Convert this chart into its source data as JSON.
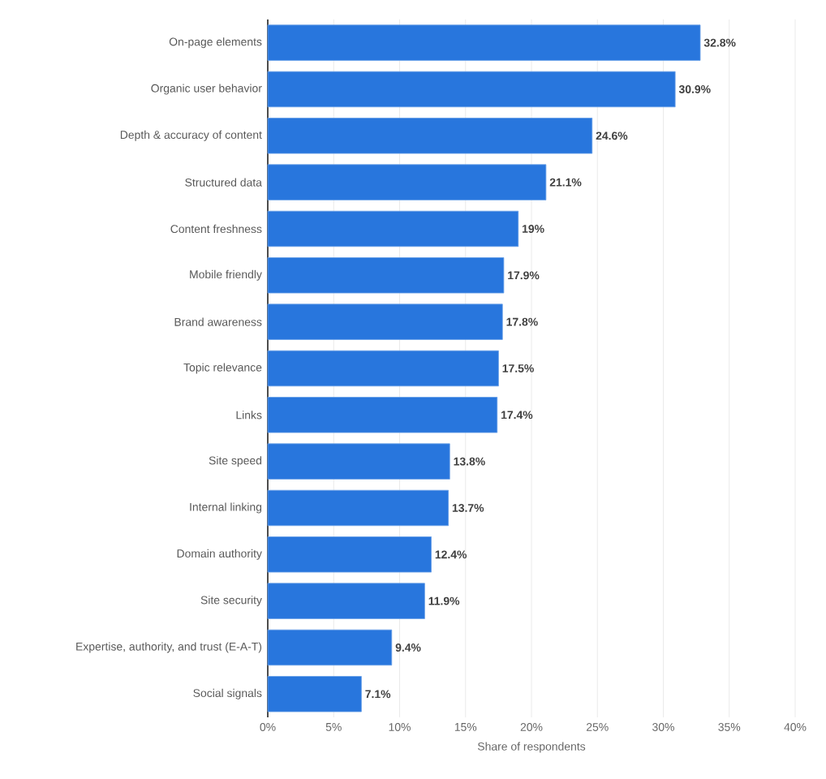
{
  "chart_data": {
    "type": "bar",
    "orientation": "horizontal",
    "xlabel": "Share of respondents",
    "categories": [
      "On-page elements",
      "Organic user behavior",
      "Depth & accuracy of content",
      "Structured data",
      "Content freshness",
      "Mobile friendly",
      "Brand awareness",
      "Topic relevance",
      "Links",
      "Site speed",
      "Internal linking",
      "Domain authority",
      "Site security",
      "Expertise, authority, and trust (E-A-T)",
      "Social signals"
    ],
    "values": [
      32.8,
      30.9,
      24.6,
      21.1,
      19,
      17.9,
      17.8,
      17.5,
      17.4,
      13.8,
      13.7,
      12.4,
      11.9,
      9.4,
      7.1
    ],
    "value_labels": [
      "32.8%",
      "30.9%",
      "24.6%",
      "21.1%",
      "19%",
      "17.9%",
      "17.8%",
      "17.5%",
      "17.4%",
      "13.8%",
      "13.7%",
      "12.4%",
      "11.9%",
      "9.4%",
      "7.1%"
    ],
    "color": "#2876dd",
    "xlim": [
      0,
      40
    ],
    "xticks": [
      {
        "value": 0,
        "label": "0%"
      },
      {
        "value": 5,
        "label": "5%"
      },
      {
        "value": 10,
        "label": "10%"
      },
      {
        "value": 15,
        "label": "15%"
      },
      {
        "value": 20,
        "label": "20%"
      },
      {
        "value": 25,
        "label": "25%"
      },
      {
        "value": 30,
        "label": "30%"
      },
      {
        "value": 35,
        "label": "35%"
      },
      {
        "value": 40,
        "label": "40%"
      }
    ],
    "grid": "x"
  }
}
